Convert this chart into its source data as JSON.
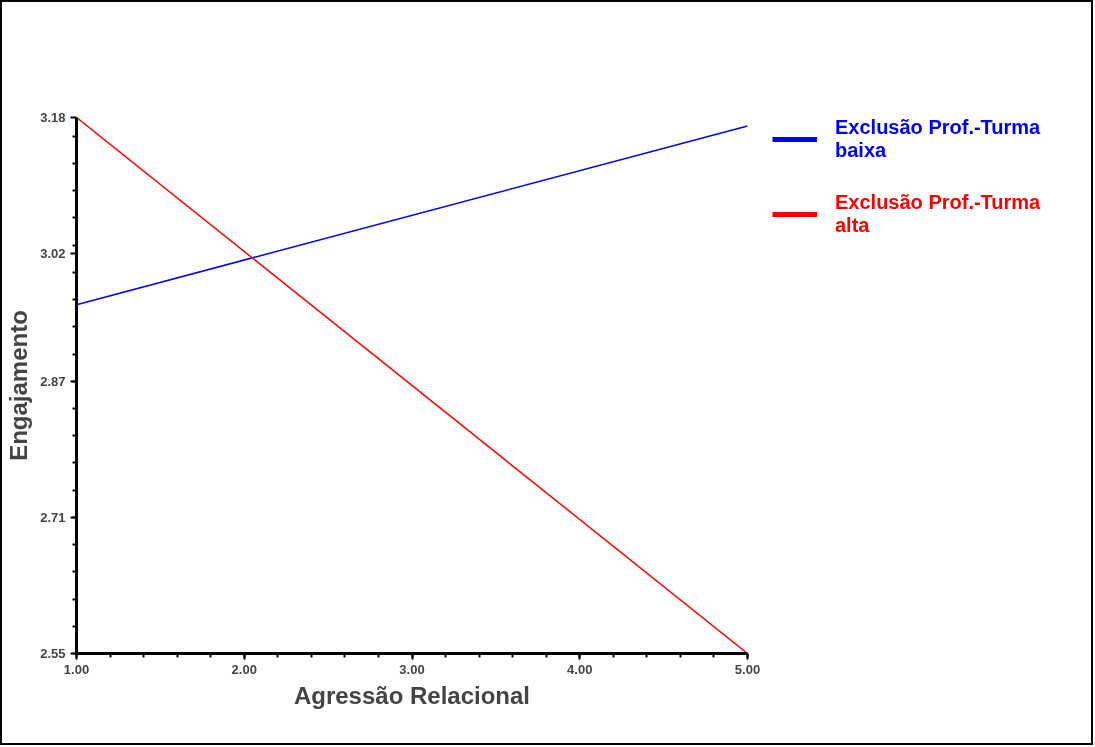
{
  "chart_data": {
    "type": "line",
    "xlabel": "Agressão Relacional",
    "ylabel": "Engajamento",
    "x": [
      1.0,
      5.0
    ],
    "series": [
      {
        "name": "Exclusão Prof.-Turma baixa",
        "color": "#0000ff",
        "values": [
          2.96,
          3.17
        ]
      },
      {
        "name": "Exclusão Prof.-Turma alta",
        "color": "#ff0000",
        "values": [
          3.18,
          2.55
        ]
      }
    ],
    "xlim": [
      1.0,
      5.0
    ],
    "ylim": [
      2.55,
      3.18
    ],
    "xticks": [
      {
        "value": 1.0,
        "label": "1.00"
      },
      {
        "value": 2.0,
        "label": "2.00"
      },
      {
        "value": 3.0,
        "label": "3.00"
      },
      {
        "value": 4.0,
        "label": "4.00"
      },
      {
        "value": 5.0,
        "label": "5.00"
      }
    ],
    "yticks": [
      2.55,
      2.71,
      2.87,
      3.02,
      3.18
    ],
    "legend": "top right",
    "grid": false,
    "marker": "none",
    "line_style": "solid"
  }
}
